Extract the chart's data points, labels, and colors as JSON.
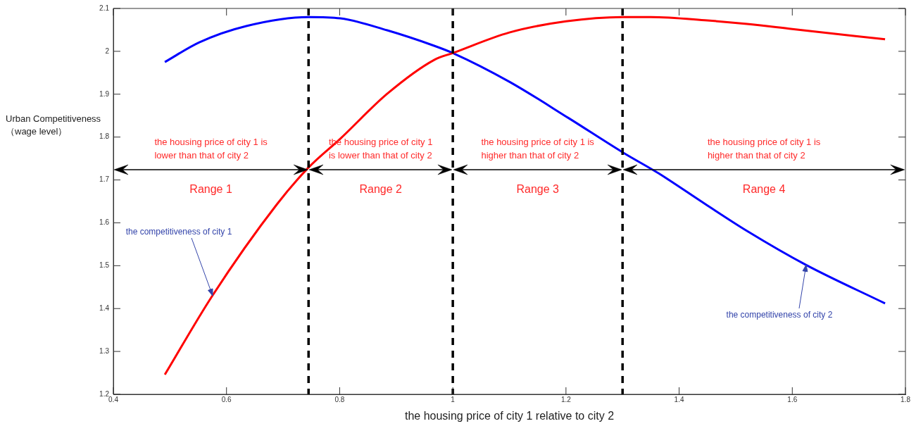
{
  "chart_data": {
    "type": "line",
    "xlabel": "the housing price of city 1 relative to city 2",
    "ylabel": "Urban Competitiveness\n（wage level）",
    "xlim": [
      0.4,
      1.8
    ],
    "xticks": [
      0.4,
      0.6,
      0.8,
      1,
      1.2,
      1.4,
      1.6,
      1.8
    ],
    "ylim": [
      1.2,
      2.1
    ],
    "yticks": [
      1.2,
      1.3,
      1.4,
      1.5,
      1.6,
      1.7,
      1.8,
      1.9,
      2,
      2.1
    ],
    "series": [
      {
        "color": "#ff0000",
        "x": [
          0.491,
          0.575,
          0.689,
          0.745,
          0.801,
          0.884,
          0.967,
          1.0,
          1.1,
          1.2,
          1.3,
          1.35,
          1.45,
          1.52,
          1.6,
          1.764
        ],
        "values": [
          1.246,
          1.43,
          1.643,
          1.729,
          1.796,
          1.901,
          1.98,
          1.996,
          2.044,
          2.07,
          2.08,
          2.08,
          2.072,
          2.064,
          2.052,
          2.028
        ]
      },
      {
        "color": "#0000ff",
        "x": [
          0.491,
          0.552,
          0.635,
          0.745,
          0.801,
          0.884,
          0.967,
          1.0,
          1.1,
          1.205,
          1.302,
          1.363,
          1.447,
          1.52,
          1.624,
          1.764
        ],
        "values": [
          1.975,
          2.021,
          2.059,
          2.08,
          2.077,
          2.049,
          2.013,
          1.996,
          1.929,
          1.844,
          1.763,
          1.716,
          1.643,
          1.581,
          1.502,
          1.412
        ]
      }
    ],
    "ref_lines": [
      {
        "axis": "x",
        "value": 0.745,
        "color": "#000000",
        "line_style": "dashed"
      },
      {
        "axis": "x",
        "value": 1,
        "color": "#000000",
        "line_style": "dashed"
      },
      {
        "axis": "x",
        "value": 1.3,
        "color": "#000000",
        "line_style": "dashed"
      }
    ],
    "annotations": [
      "the housing price of city 1 is\nlower than that of city 2",
      "Range 1",
      "the housing price of city 1\nis lower than that of city 2",
      "Range 2",
      "the housing price of city 1 is\nhigher than that of city 2",
      "Range 3",
      "the housing price of city 1 is\nhigher than that of city 2",
      "Range 4",
      {
        "text": "the competitiveness of city 1",
        "x": 0.575,
        "y": 1.43
      },
      {
        "text": "the competitiveness of city 2",
        "x": 1.624,
        "y": 1.502
      }
    ],
    "line_style": "solid",
    "marker": "none",
    "legend": false
  }
}
